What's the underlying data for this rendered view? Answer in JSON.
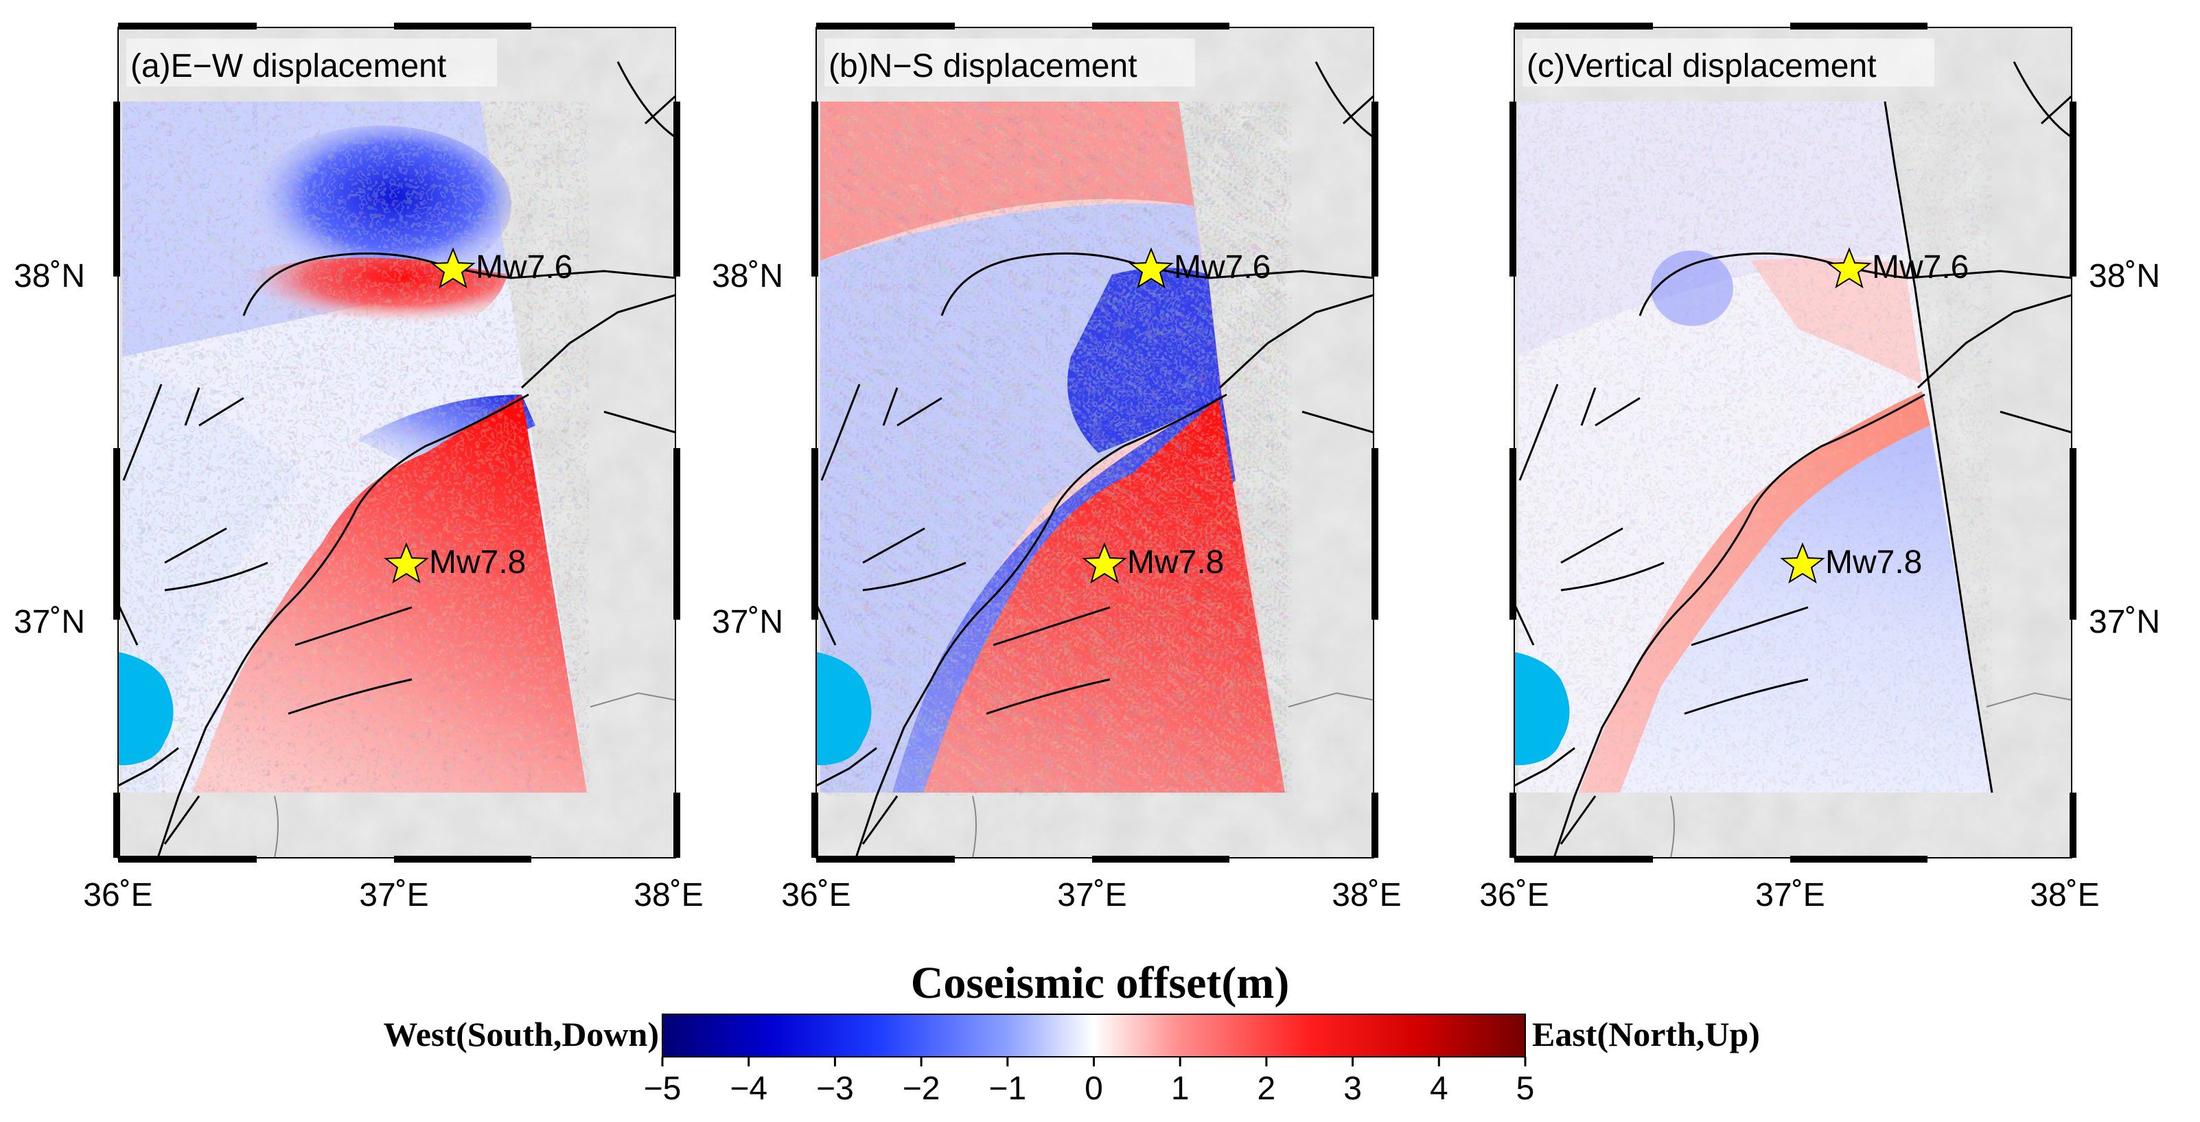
{
  "panels": [
    {
      "id": "a",
      "title": "(a)E−W displacement",
      "component": "east-west"
    },
    {
      "id": "b",
      "title": "(b)N−S displacement",
      "component": "north-south"
    },
    {
      "id": "c",
      "title": "(c)Vertical displacement",
      "component": "vertical"
    }
  ],
  "axes": {
    "lat_ticks": [
      "38˚N",
      "37˚N"
    ],
    "lon_ticks": [
      "36˚E",
      "37˚E",
      "38˚E"
    ],
    "lon_range": [
      36.0,
      38.0
    ],
    "lat_range": [
      36.2,
      38.7
    ]
  },
  "epicenters": [
    {
      "label": "Mw7.6",
      "lon": 37.22,
      "lat": 38.02
    },
    {
      "label": "Mw7.8",
      "lon": 37.03,
      "lat": 37.17
    }
  ],
  "colorbar": {
    "title": "Coseismic offset(m)",
    "left_label": "West(South,Down)",
    "right_label": "East(North,Up)",
    "min": -5,
    "max": 5,
    "ticks": [
      "−5",
      "−4",
      "−3",
      "−2",
      "−1",
      "0",
      "1",
      "2",
      "3",
      "4",
      "5"
    ],
    "palette": [
      "#000075",
      "#0000d2",
      "#1e3cff",
      "#8ca0ff",
      "#ffffff",
      "#ff8c8c",
      "#ff1e1e",
      "#d20000",
      "#750000"
    ]
  },
  "colors": {
    "water": "#00b8ee",
    "terrain": "#dcdcdc",
    "fault": "#000000",
    "star_fill": "#ffff00"
  }
}
